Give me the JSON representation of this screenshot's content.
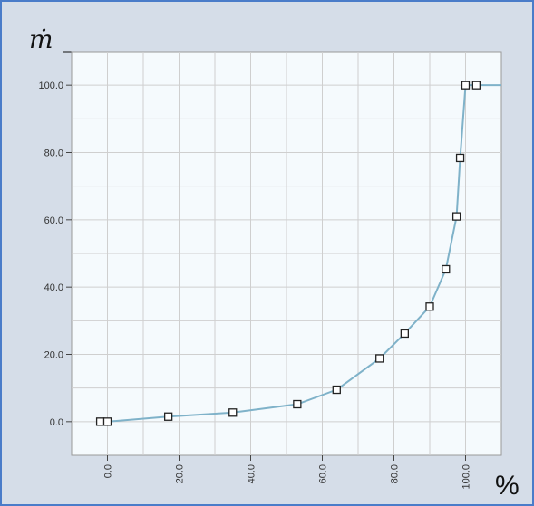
{
  "chart_data": {
    "type": "line",
    "title": "",
    "y_unit": "ṁ",
    "x_unit": "%",
    "xlim": [
      -10,
      110
    ],
    "ylim": [
      -10,
      110
    ],
    "x_tick_labels": [
      "0.0",
      "20.0",
      "40.0",
      "60.0",
      "80.0",
      "100.0"
    ],
    "x_tick_values": [
      0,
      20,
      40,
      60,
      80,
      100
    ],
    "y_tick_labels": [
      "0.0",
      "20.0",
      "40.0",
      "60.0",
      "80.0",
      "100.0"
    ],
    "y_tick_values": [
      0,
      20,
      40,
      60,
      80,
      100
    ],
    "grid": true,
    "series": [
      {
        "color": "#7fb2c9",
        "points": [
          [
            -2,
            0
          ],
          [
            0,
            0
          ],
          [
            17,
            1.5
          ],
          [
            35,
            2.7
          ],
          [
            53,
            5.2
          ],
          [
            64,
            9.5
          ],
          [
            76,
            18.8
          ],
          [
            83,
            26.2
          ],
          [
            90,
            34.2
          ],
          [
            94.5,
            45.3
          ],
          [
            97.5,
            61
          ],
          [
            98.5,
            78.4
          ],
          [
            100,
            100
          ],
          [
            103,
            100
          ]
        ],
        "line_extends_to_x": 110
      }
    ]
  }
}
